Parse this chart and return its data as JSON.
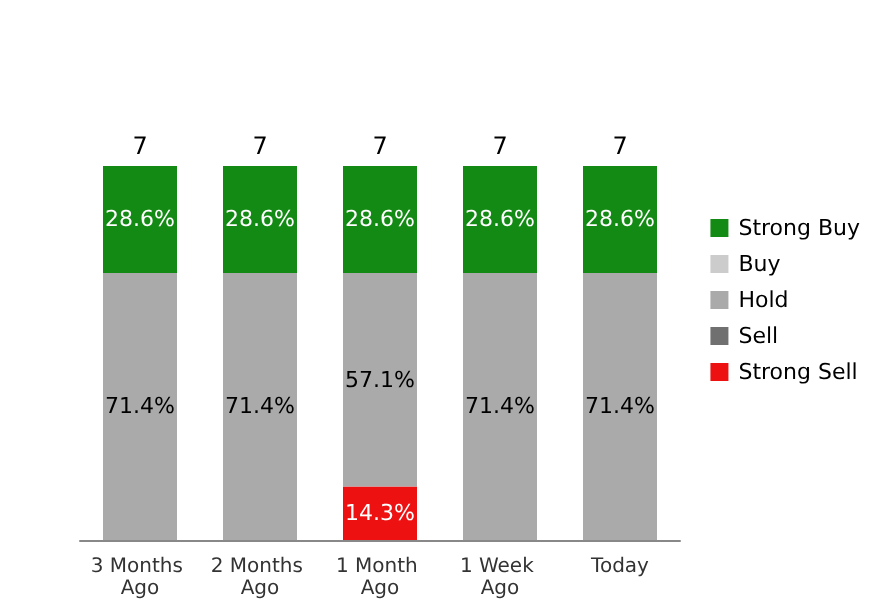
{
  "chart_data": {
    "type": "bar",
    "stacked": true,
    "categories": [
      "3 Months Ago",
      "2 Months Ago",
      "1 Month Ago",
      "1 Week Ago",
      "Today"
    ],
    "series": [
      {
        "name": "Strong Sell",
        "color": "#ee1111",
        "values": [
          0,
          0,
          14.3,
          0,
          0
        ],
        "value_labels": [
          null,
          null,
          "14.3%",
          null,
          null
        ]
      },
      {
        "name": "Sell",
        "color": "#707070",
        "values": [
          0,
          0,
          0,
          0,
          0
        ],
        "value_labels": [
          null,
          null,
          null,
          null,
          null
        ]
      },
      {
        "name": "Hold",
        "color": "#aaaaaa",
        "values": [
          71.4,
          71.4,
          57.1,
          71.4,
          71.4
        ],
        "value_labels": [
          "71.4%",
          "71.4%",
          "57.1%",
          "71.4%",
          "71.4%"
        ]
      },
      {
        "name": "Buy",
        "color": "#cccccc",
        "values": [
          0,
          0,
          0,
          0,
          0
        ],
        "value_labels": [
          null,
          null,
          null,
          null,
          null
        ]
      },
      {
        "name": "Strong Buy",
        "color": "#138a13",
        "values": [
          28.6,
          28.6,
          28.6,
          28.6,
          28.6
        ],
        "value_labels": [
          "28.6%",
          "28.6%",
          "28.6%",
          "28.6%",
          "28.6%"
        ]
      }
    ],
    "annotations": [
      {
        "text": "7",
        "x": "3 Months Ago",
        "y": 100
      },
      {
        "text": "7",
        "x": "2 Months Ago",
        "y": 100
      },
      {
        "text": "7",
        "x": "1 Month Ago",
        "y": 100
      },
      {
        "text": "7",
        "x": "1 Week Ago",
        "y": 100
      },
      {
        "text": "7",
        "x": "Today",
        "y": 100
      }
    ],
    "legend": "right",
    "grid": false
  }
}
